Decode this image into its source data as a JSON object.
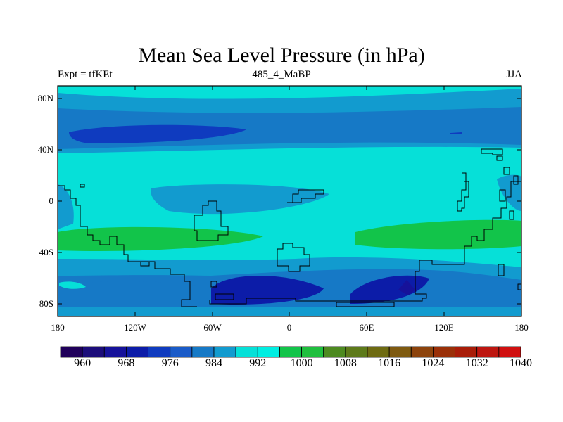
{
  "title": "Mean Sea Level Pressure (in hPa)",
  "left_label": "Expt = tfKEt",
  "center_label": "485_4_MaBP",
  "right_label": "JJA",
  "lat_ticks": [
    "80N",
    "40N",
    "0",
    "40S",
    "80S"
  ],
  "lon_ticks": [
    "180",
    "120W",
    "60W",
    "0",
    "60E",
    "120E",
    "180"
  ],
  "colorbar": {
    "colors": [
      "#20005a",
      "#1c0d7a",
      "#16129a",
      "#0c1ca8",
      "#0f3bbf",
      "#1a5bc8",
      "#1679c6",
      "#129bcf",
      "#06e0d8",
      "#00eee2",
      "#12c44a",
      "#1fbf3e",
      "#4d8a20",
      "#5d7a1a",
      "#6e6b12",
      "#7e5a10",
      "#8c430c",
      "#9a3008",
      "#a81d08",
      "#bd1610",
      "#d01010"
    ],
    "tick_labels": [
      "960",
      "968",
      "976",
      "984",
      "992",
      "1000",
      "1008",
      "1016",
      "1024",
      "1032",
      "1040"
    ]
  },
  "colors": {
    "land_outline": "#000000",
    "frame": "#000000"
  }
}
